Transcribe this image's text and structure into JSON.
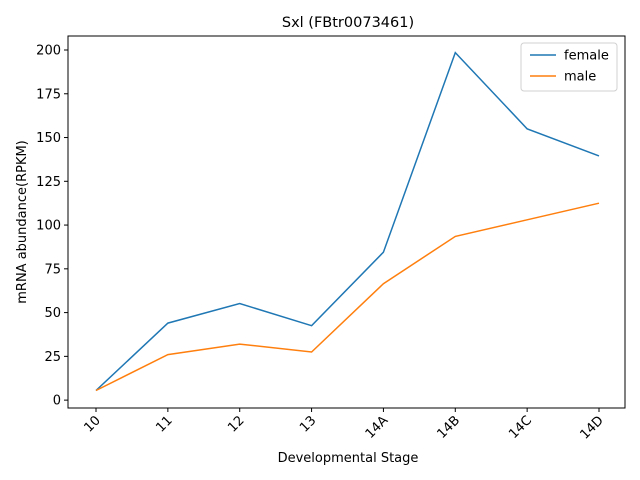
{
  "chart_data": {
    "type": "line",
    "title": "Sxl (FBtr0073461)",
    "xlabel": "Developmental Stage",
    "ylabel": "mRNA abundance(RPKM)",
    "categories": [
      "10",
      "11",
      "12",
      "13",
      "14A",
      "14B",
      "14C",
      "14D"
    ],
    "series": [
      {
        "name": "female",
        "color": "#1f77b4",
        "values": [
          5.5,
          44,
          55.2,
          42.5,
          84.5,
          198.5,
          155,
          139.5
        ]
      },
      {
        "name": "male",
        "color": "#ff7f0e",
        "values": [
          5.5,
          26,
          32,
          27.5,
          66.5,
          93.5,
          103,
          112.5
        ]
      }
    ],
    "ylim": [
      -4.5,
      208
    ],
    "yticks": [
      0,
      25,
      50,
      75,
      100,
      125,
      150,
      175,
      200
    ],
    "grid": false,
    "legend": "top-right"
  }
}
